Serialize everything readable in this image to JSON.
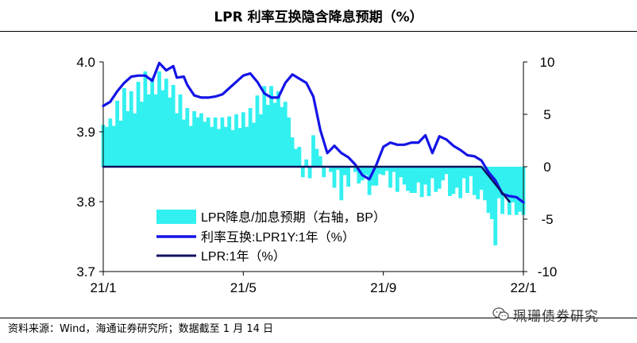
{
  "header": {
    "title": "LPR 利率互换隐含降息预期（%）"
  },
  "footer": {
    "source": "资料来源：Wind，海通证券研究所；数据截至 1 月 14 日",
    "watermark": "珮珊债券研究"
  },
  "icons": {
    "watermark": "wechat-icon"
  },
  "colors": {
    "bars": "#33f0f0",
    "swap_line": "#1414e6",
    "lpr_line": "#101060",
    "axis": "#000000"
  },
  "chart_data": {
    "type": "bar+line",
    "title": "LPR 利率互换隐含降息预期（%）",
    "x_ticks": [
      {
        "label": "21/1",
        "t": 0
      },
      {
        "label": "21/5",
        "t": 80
      },
      {
        "label": "21/9",
        "t": 160
      },
      {
        "label": "22/1",
        "t": 240
      }
    ],
    "x_range": [
      0,
      240
    ],
    "y_left": {
      "ticks": [
        "4.0",
        "3.9",
        "3.8",
        "3.7"
      ],
      "values": [
        4.0,
        3.9,
        3.8,
        3.7
      ],
      "range": [
        3.7,
        4.0
      ]
    },
    "y_right": {
      "ticks": [
        "10",
        "5",
        "0",
        "-5",
        "-10"
      ],
      "values": [
        10,
        5,
        0,
        -5,
        -10
      ],
      "range": [
        -10,
        10
      ]
    },
    "legend": {
      "position": "bottom-left",
      "entries": [
        "LPR降息/加息预期（右轴，BP）",
        "利率互换:LPR1Y:1年（%）",
        "LPR:1年（%）"
      ]
    },
    "series": [
      {
        "name": "LPR降息/加息预期（右轴，BP）",
        "type": "bar",
        "axis": "right",
        "t": [
          0,
          2,
          4,
          6,
          8,
          10,
          12,
          14,
          16,
          18,
          20,
          22,
          24,
          26,
          28,
          30,
          32,
          34,
          36,
          38,
          40,
          42,
          44,
          46,
          48,
          50,
          52,
          54,
          56,
          58,
          60,
          62,
          64,
          66,
          68,
          70,
          72,
          74,
          76,
          78,
          80,
          82,
          84,
          86,
          88,
          90,
          92,
          94,
          96,
          98,
          100,
          102,
          104,
          106,
          108,
          110,
          112,
          114,
          116,
          118,
          120,
          122,
          124,
          126,
          128,
          130,
          132,
          134,
          136,
          138,
          140,
          142,
          144,
          146,
          148,
          150,
          152,
          154,
          156,
          158,
          160,
          162,
          164,
          166,
          168,
          170,
          172,
          174,
          176,
          178,
          180,
          182,
          184,
          186,
          188,
          190,
          192,
          194,
          196,
          198,
          200,
          202,
          204,
          206,
          208,
          210,
          212,
          214,
          216,
          218,
          220,
          222,
          224,
          226,
          228,
          230,
          232,
          234,
          236,
          238,
          240
        ],
        "values": [
          4.0,
          3.8,
          4.6,
          3.9,
          6.3,
          4.4,
          7.5,
          5.3,
          7.2,
          5.1,
          8.1,
          6.2,
          9.1,
          6.9,
          8.5,
          6.9,
          9.1,
          7.3,
          8.4,
          6.6,
          7.8,
          5.1,
          6.9,
          4.5,
          5.6,
          3.9,
          5.3,
          4.7,
          5.1,
          4.3,
          4.7,
          3.8,
          4.7,
          3.6,
          4.7,
          3.8,
          4.8,
          3.5,
          5.0,
          3.7,
          5.2,
          3.8,
          5.6,
          4.2,
          6.8,
          5.0,
          7.7,
          5.9,
          7.7,
          6.1,
          7.2,
          5.7,
          6.2,
          4.7,
          2.8,
          1.7,
          1.9,
          -1.0,
          0.7,
          -1.1,
          3.0,
          1.7,
          1.0,
          -1.0,
          0.0,
          -0.5,
          -2.0,
          -0.3,
          -3.2,
          -0.8,
          -1.9,
          0.0,
          -0.5,
          -1.6,
          -1.3,
          -0.8,
          -2.7,
          -1.8,
          -1.8,
          -0.7,
          -0.8,
          -0.4,
          -2.0,
          -0.5,
          -2.4,
          -1.0,
          -1.7,
          -2.3,
          -2.5,
          -2.5,
          -1.5,
          -2.9,
          -1.7,
          -2.8,
          -1.1,
          -2.4,
          -2.1,
          -1.3,
          -0.7,
          -2.8,
          -2.6,
          -2.0,
          -3.0,
          -1.1,
          -2.5,
          -0.9,
          -2.7,
          -3.1,
          -2.2,
          -3.2,
          -4.4,
          -5.0,
          -7.5,
          -3.0,
          -4.5,
          -2.9,
          -4.6,
          -3.4,
          -4.6,
          -4.3,
          -4.6
        ]
      },
      {
        "name": "利率互换:LPR1Y:1年（%）",
        "type": "line",
        "axis": "right",
        "t": [
          0,
          4,
          8,
          12,
          16,
          20,
          24,
          28,
          32,
          36,
          40,
          42,
          46,
          48,
          52,
          56,
          60,
          64,
          68,
          72,
          76,
          80,
          84,
          88,
          92,
          96,
          100,
          104,
          108,
          112,
          116,
          120,
          124,
          128,
          132,
          136,
          140,
          144,
          148,
          152,
          156,
          160,
          164,
          168,
          172,
          176,
          180,
          184,
          188,
          192,
          196,
          200,
          204,
          208,
          212,
          216,
          220,
          224,
          228,
          232,
          236,
          240
        ],
        "values": [
          5.8,
          6.2,
          7.2,
          8.0,
          8.6,
          8.7,
          8.7,
          8.2,
          9.9,
          9.2,
          9.6,
          8.5,
          8.6,
          7.8,
          6.8,
          6.6,
          6.6,
          6.7,
          6.9,
          7.5,
          8.1,
          8.7,
          8.9,
          8.1,
          7.0,
          6.6,
          6.6,
          8.0,
          8.8,
          8.4,
          8.0,
          6.7,
          3.5,
          1.3,
          2.0,
          1.3,
          0.9,
          0.2,
          -0.8,
          -1.2,
          0.2,
          1.9,
          2.3,
          2.1,
          2.1,
          2.3,
          2.3,
          3.0,
          1.3,
          2.9,
          2.6,
          2.0,
          1.6,
          1.1,
          1.0,
          0.6,
          -0.5,
          -1.3,
          -2.6,
          -2.8,
          -2.9,
          -3.4
        ]
      },
      {
        "name": "LPR:1年（%）",
        "type": "line",
        "axis": "left",
        "t": [
          0,
          216,
          224,
          232
        ],
        "values": [
          3.85,
          3.85,
          3.825,
          3.8
        ]
      }
    ]
  }
}
